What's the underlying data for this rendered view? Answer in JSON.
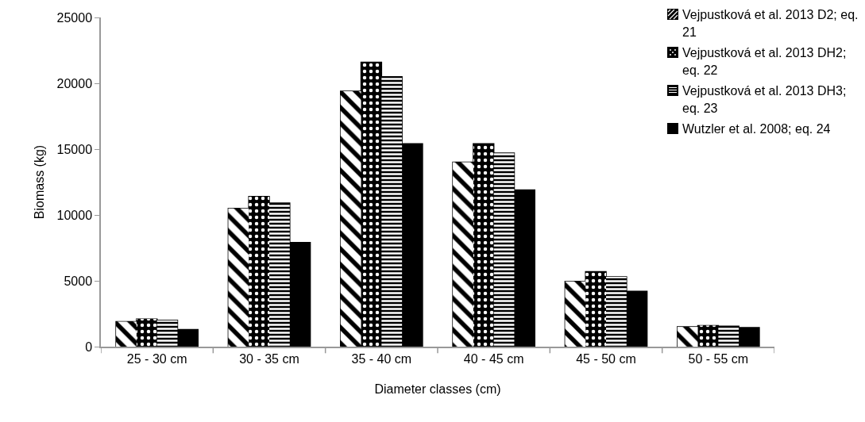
{
  "chart_data": {
    "type": "bar",
    "xlabel": "Diameter classes (cm)",
    "ylabel": "Biomass (kg)",
    "categories": [
      "25 - 30 cm",
      "30 - 35 cm",
      "35 - 40 cm",
      "40 - 45 cm",
      "45 - 50 cm",
      "50 - 55 cm"
    ],
    "series": [
      {
        "name": "Vejpustková et al. 2013 D2; eq. 21",
        "color": "#000000",
        "values": [
          1900,
          10500,
          19400,
          14000,
          4950,
          1500
        ]
      },
      {
        "name": "Vejpustková et al. 2013 DH2; eq. 22",
        "color": "#000000",
        "values": [
          2100,
          11400,
          21600,
          15400,
          5700,
          1600
        ]
      },
      {
        "name": "Vejpustková et al. 2013 DH3; eq. 23",
        "color": "#000000",
        "values": [
          2000,
          10900,
          20500,
          14700,
          5300,
          1550
        ]
      },
      {
        "name": "Wutzler et al. 2008; eq. 24",
        "color": "#000000",
        "values": [
          1300,
          7900,
          15400,
          11900,
          4200,
          1450
        ]
      }
    ],
    "ylim": [
      0,
      25000
    ],
    "yticks": [
      0,
      5000,
      10000,
      15000,
      20000,
      25000
    ],
    "grid": false,
    "legend": "top right"
  }
}
